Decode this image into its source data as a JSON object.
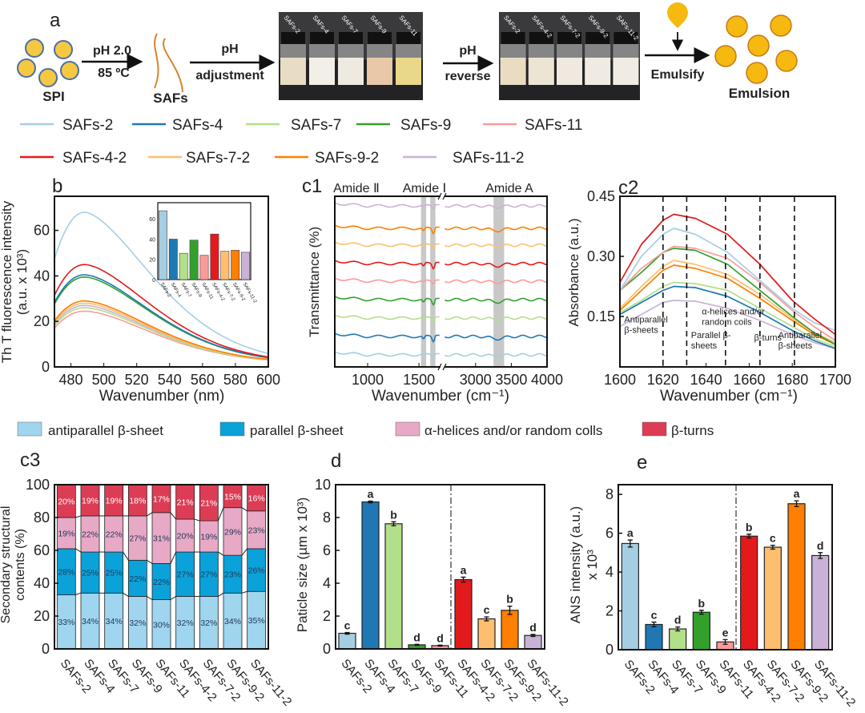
{
  "colors": {
    "SAFs-2": "#a6cee3",
    "SAFs-4": "#1f78b4",
    "SAFs-7": "#b2df8a",
    "SAFs-9": "#33a02c",
    "SAFs-11": "#fb9a99",
    "SAFs-4-2": "#e31a1c",
    "SAFs-7-2": "#fdbf6f",
    "SAFs-9-2": "#ff7f00",
    "SAFs-11-2": "#cab2d6",
    "antiparallel": "#9fd5ee",
    "parallel": "#0aa2d9",
    "helices": "#e8a9c6",
    "turns": "#dc3d55",
    "droplet": "#f5b90f",
    "spi": "#f5c842"
  },
  "panel_a": {
    "label": "a",
    "spi_label": "SPI",
    "step1_top": "pH 2.0",
    "step1_bottom": "85 ºC",
    "safs_label": "SAFs",
    "step2_top": "pH",
    "step2_bottom": "adjustment",
    "photo1_vials": [
      "SAFs-2",
      "SAFs-4",
      "SAFs-7",
      "SAFs-9",
      "SAFs-11"
    ],
    "step3_top": "pH",
    "step3_bottom": "reverse",
    "photo2_vials": [
      "SAFs-2",
      "SAFs-4-2",
      "SAFs-7-2",
      "SAFs-9-2",
      "SAFs-11-2"
    ],
    "step4": "Emulsify",
    "emulsion_label": "Emulsion"
  },
  "legend": {
    "row1": [
      "SAFs-2",
      "SAFs-4",
      "SAFs-7",
      "SAFs-9",
      "SAFs-11"
    ],
    "row2": [
      "SAFs-4-2",
      "SAFs-7-2",
      "SAFs-9-2",
      "SAFs-11-2"
    ]
  },
  "structure_legend": [
    "antiparallel  β-sheet",
    "parallel β-sheet",
    "α-helices and/or random colls",
    "β-turns"
  ],
  "chart_data": [
    {
      "id": "b",
      "panel_label": "b",
      "type": "line",
      "xlabel": "Wavenumber (nm)",
      "ylabel": "Th T fluorescence intensity",
      "ylabel2": "(a.u. x 10³)",
      "xlim": [
        470,
        600
      ],
      "ylim": [
        0,
        75
      ],
      "xticks": [
        480,
        500,
        520,
        540,
        560,
        580,
        600
      ],
      "yticks": [
        0,
        20,
        40,
        60
      ],
      "peak_x": 488,
      "series_names": [
        "SAFs-2",
        "SAFs-4",
        "SAFs-7",
        "SAFs-9",
        "SAFs-11",
        "SAFs-4-2",
        "SAFs-7-2",
        "SAFs-9-2",
        "SAFs-11-2"
      ],
      "peak_values": [
        68,
        40.5,
        26,
        39.5,
        24.5,
        45,
        28,
        29,
        27
      ],
      "inset": {
        "type": "bar",
        "categories": [
          "SAFs-2",
          "SAFs-4",
          "SAFs-7",
          "SAFs-9",
          "SAFs-11",
          "SAFs-4-2",
          "SAFs-7-2",
          "SAFs-9-2",
          "SAFs-11-2"
        ],
        "values": [
          68,
          40,
          26,
          39,
          24,
          45,
          28,
          29,
          27
        ],
        "ylim": [
          0,
          76
        ],
        "yticks": [
          0,
          20,
          40,
          60
        ]
      }
    },
    {
      "id": "c1",
      "panel_label": "c1",
      "type": "line",
      "xlabel": "Wavenumber (cm⁻¹)",
      "ylabel": "Transmittance (%)",
      "xlim_left": [
        680,
        1710
      ],
      "xlim_right": [
        2565,
        4000
      ],
      "xticks": [
        1000,
        1500,
        3000,
        3500,
        4000
      ],
      "bands": [
        {
          "label": "Amide Ⅱ",
          "range": [
            1520,
            1570
          ]
        },
        {
          "label": "Amide Ⅰ",
          "range": [
            1610,
            1660
          ]
        },
        {
          "label": "Amide A",
          "range": [
            3250,
            3400
          ]
        }
      ],
      "stack_order_bottom_to_top": [
        "SAFs-2",
        "SAFs-4",
        "SAFs-7",
        "SAFs-9",
        "SAFs-11",
        "SAFs-4-2",
        "SAFs-7-2",
        "SAFs-9-2",
        "SAFs-11-2"
      ]
    },
    {
      "id": "c2",
      "panel_label": "c2",
      "type": "line",
      "xlabel": "Wavenumber (cm⁻¹)",
      "ylabel": "Absorbance (a.u.)",
      "xlim": [
        1600,
        1700
      ],
      "ylim": [
        0.024,
        0.45
      ],
      "xticks": [
        1600,
        1620,
        1640,
        1660,
        1680,
        1700
      ],
      "yticks": [
        0.15,
        0.3,
        0.45
      ],
      "ytick_labels": [
        "0.15",
        "0.30",
        "0.45"
      ],
      "dashed_lines": [
        1620,
        1631,
        1649,
        1665,
        1681
      ],
      "annotations": [
        {
          "lines": [
            "Antiparallel",
            "β-sheets"
          ],
          "x": 1602,
          "y": 0.135
        },
        {
          "lines": [
            "Parallel β-",
            "sheets"
          ],
          "x": 1633,
          "y": 0.096
        },
        {
          "lines": [
            "α-helices and/or",
            "random coils"
          ],
          "x": 1638,
          "y": 0.155
        },
        {
          "lines": [
            "β-turns"
          ],
          "x": 1666,
          "y": 0.09
        },
        {
          "lines": [
            "Antiparallel",
            "β-sheets"
          ],
          "x": 1672,
          "y": 0.096
        }
      ],
      "x": [
        1600,
        1610,
        1620,
        1625,
        1635,
        1650,
        1665,
        1680,
        1690,
        1700
      ],
      "series": [
        {
          "name": "SAFs-11-2",
          "values": [
            0.125,
            0.155,
            0.185,
            0.19,
            0.188,
            0.17,
            0.14,
            0.105,
            0.085,
            0.07
          ]
        },
        {
          "name": "SAFs-4",
          "values": [
            0.155,
            0.185,
            0.215,
            0.225,
            0.222,
            0.2,
            0.16,
            0.115,
            0.09,
            0.07
          ]
        },
        {
          "name": "SAFs-7",
          "values": [
            0.16,
            0.19,
            0.225,
            0.235,
            0.232,
            0.215,
            0.17,
            0.125,
            0.095,
            0.075
          ]
        },
        {
          "name": "SAFs-9-2",
          "values": [
            0.165,
            0.215,
            0.265,
            0.278,
            0.27,
            0.245,
            0.195,
            0.14,
            0.105,
            0.08
          ]
        },
        {
          "name": "SAFs-7-2",
          "values": [
            0.17,
            0.225,
            0.275,
            0.29,
            0.28,
            0.255,
            0.205,
            0.145,
            0.11,
            0.085
          ]
        },
        {
          "name": "SAFs-9",
          "values": [
            0.215,
            0.26,
            0.31,
            0.32,
            0.315,
            0.28,
            0.215,
            0.15,
            0.11,
            0.08
          ]
        },
        {
          "name": "SAFs-11",
          "values": [
            0.215,
            0.27,
            0.31,
            0.325,
            0.32,
            0.295,
            0.235,
            0.165,
            0.125,
            0.09
          ]
        },
        {
          "name": "SAFs-2",
          "values": [
            0.215,
            0.3,
            0.355,
            0.37,
            0.355,
            0.31,
            0.24,
            0.17,
            0.135,
            0.115
          ]
        },
        {
          "name": "SAFs-4-2",
          "values": [
            0.235,
            0.33,
            0.39,
            0.405,
            0.395,
            0.355,
            0.28,
            0.19,
            0.145,
            0.105
          ]
        }
      ]
    },
    {
      "id": "c3",
      "panel_label": "c3",
      "type": "bar",
      "stacked": true,
      "ylabel": "Secondary structural",
      "ylabel2": "contents (%)",
      "ylim": [
        0,
        100
      ],
      "yticks": [
        0,
        20,
        40,
        60,
        80,
        100
      ],
      "categories": [
        "SAFs-2",
        "SAFs-4",
        "SAFs-7",
        "SAFs-9",
        "SAFs-11",
        "SAFs-4-2",
        "SAFs-7-2",
        "SAFs-9-2",
        "SAFs-11-2"
      ],
      "series": [
        {
          "name": "antiparallel  β-sheet",
          "values": [
            33,
            34,
            34,
            32,
            30,
            32,
            32,
            34,
            35
          ]
        },
        {
          "name": "parallel β-sheet",
          "values": [
            28,
            25,
            25,
            22,
            22,
            27,
            27,
            23,
            26
          ]
        },
        {
          "name": "α-helices and/or random colls",
          "values": [
            19,
            22,
            22,
            27,
            31,
            20,
            19,
            29,
            23
          ]
        },
        {
          "name": "β-turns",
          "values": [
            20,
            19,
            19,
            18,
            17,
            21,
            21,
            15,
            16
          ]
        }
      ]
    },
    {
      "id": "d",
      "panel_label": "d",
      "type": "bar",
      "ylabel": "Paticle size (µm x 10³)",
      "ylim": [
        0,
        10
      ],
      "yticks": [
        0,
        2,
        4,
        6,
        8,
        10
      ],
      "categories": [
        "SAFs-2",
        "SAFs-4",
        "SAFs-7",
        "SAFs-9",
        "SAFs-11",
        "SAFs-4-2",
        "SAFs-7-2",
        "SAFs-9-2",
        "SAFs-11-2"
      ],
      "values": [
        0.95,
        8.95,
        7.62,
        0.25,
        0.2,
        4.22,
        1.83,
        2.35,
        0.82
      ],
      "errors": [
        0.05,
        0.05,
        0.12,
        0.03,
        0.03,
        0.15,
        0.12,
        0.25,
        0.06
      ],
      "letters": [
        "c",
        "a",
        "b",
        "d",
        "d",
        "a",
        "c",
        "b",
        "d"
      ]
    },
    {
      "id": "e",
      "panel_label": "e",
      "type": "bar",
      "ylabel": "ANS intensity (a.u.)",
      "ylabel2": "x 10³",
      "ylim": [
        0,
        8.5
      ],
      "yticks": [
        0,
        2,
        4,
        6,
        8
      ],
      "categories": [
        "SAFs-2",
        "SAFs-4",
        "SAFs-7",
        "SAFs-9",
        "SAFs-11",
        "SAFs-4-2",
        "SAFs-7-2",
        "SAFs-9-2",
        "SAFs-11-2"
      ],
      "values": [
        5.47,
        1.3,
        1.07,
        1.93,
        0.4,
        5.85,
        5.28,
        7.52,
        4.85
      ],
      "errors": [
        0.18,
        0.12,
        0.1,
        0.1,
        0.12,
        0.1,
        0.1,
        0.15,
        0.15
      ],
      "letters": [
        "a",
        "c",
        "d",
        "b",
        "e",
        "b",
        "c",
        "a",
        "d"
      ]
    }
  ]
}
